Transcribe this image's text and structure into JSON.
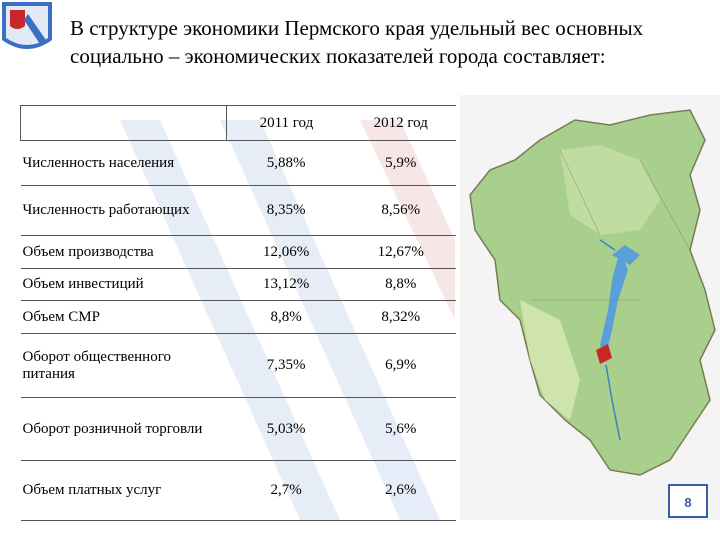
{
  "title": "В структуре экономики Пермского края удельный вес основных социально – экономических  показателей города составляет:",
  "table": {
    "headers": [
      "2011 год",
      "2012 год"
    ],
    "rows": [
      [
        "Численность населения",
        "5,88%",
        "5,9%"
      ],
      [
        "Численность работающих",
        "8,35%",
        "8,56%"
      ],
      [
        "Объем производства",
        "12,06%",
        "12,67%"
      ],
      [
        "Объем инвестиций",
        "13,12%",
        "8,8%"
      ],
      [
        "Объем СМР",
        "8,8%",
        "8,32%"
      ],
      [
        "Оборот общественного питания",
        "7,35%",
        "6,9%"
      ],
      [
        "Оборот розничной торговли",
        "5,03%",
        "5,6%"
      ],
      [
        "Объем платных услуг",
        "2,7%",
        "2,6%"
      ]
    ]
  },
  "page_number": "8"
}
